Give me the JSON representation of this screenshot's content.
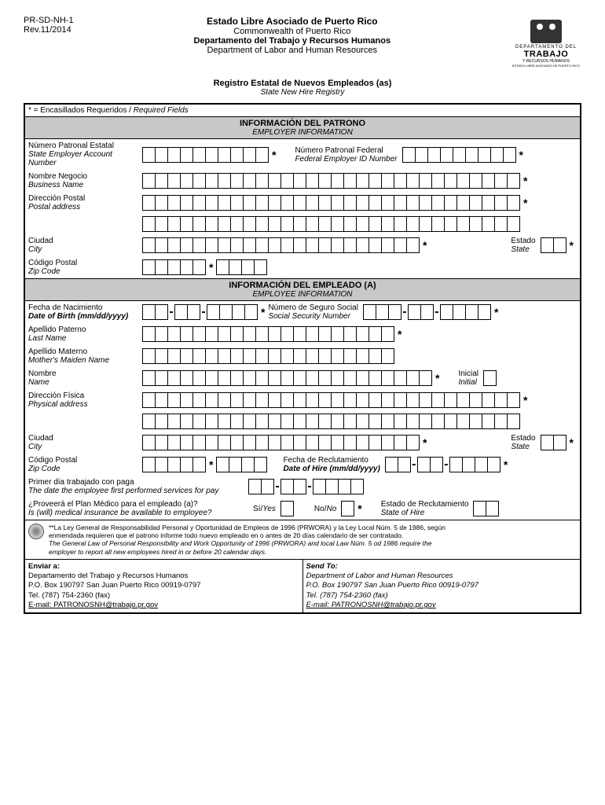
{
  "form_id": "PR-SD-NH-1",
  "revision": "Rev.11/2014",
  "header": {
    "title_es": "Estado Libre Asociado de Puerto Rico",
    "title_en": "Commonwealth of Puerto Rico",
    "dept_es": "Departamento del Trabajo y Recursos Humanos",
    "dept_en": "Department of Labor and Human Resources"
  },
  "logo": {
    "line1": "DEPARTAMENTO DEL",
    "line2": "TRABAJO",
    "line3": "Y RECURSOS HUMANOS",
    "line4": "ESTADO LIBRE ASOCIADO DE PUERTO RICO"
  },
  "subtitle": {
    "es": "Registro Estatal de Nuevos Empleados (as)",
    "en": "State New Hire Registry"
  },
  "required": {
    "prefix": "* = Encasillados Requeridos / ",
    "italic": "Required Fields"
  },
  "sections": {
    "employer": {
      "es": "INFORMACIÓN DEL PATRONO",
      "en": "EMPLOYER INFORMATION"
    },
    "employee": {
      "es": "INFORMACIÓN DEL EMPLEADO (A)",
      "en": "EMPLOYEE INFORMATION"
    }
  },
  "fields": {
    "state_emp_num": {
      "es": "Número Patronal Estatal",
      "en": "State Employer Account Number"
    },
    "fed_emp_num": {
      "es": "Número Patronal Federal",
      "en": "Federal Employer ID Number"
    },
    "business": {
      "es": "Nombre Negocio",
      "en": "Business Name"
    },
    "postal": {
      "es": "Dirección Postal",
      "en": "Postal address"
    },
    "city": {
      "es": "Ciudad",
      "en": "City"
    },
    "state": {
      "es": "Estado",
      "en": "State"
    },
    "zip": {
      "es": "Código Postal",
      "en": "Zip Code"
    },
    "dob": {
      "es": "Fecha de Nacimiento",
      "en": "Date of Birth  (mm/dd/yyyy)"
    },
    "ssn": {
      "es": "Número de Seguro Social",
      "en": "Social Security Number"
    },
    "lastname": {
      "es": "Apellido Paterno",
      "en": "Last Name"
    },
    "maiden": {
      "es": "Apellido Materno",
      "en": "Mother's Maiden Name"
    },
    "firstname": {
      "es": "Nombre",
      "en": "Name"
    },
    "initial": {
      "es": "Inicial",
      "en": "Initial"
    },
    "physical": {
      "es": "Dirección Física",
      "en": "Physical address"
    },
    "hire_date": {
      "es": "Fecha de Reclutamiento",
      "en": "Date of Hire  (mm/dd/yyyy)"
    },
    "first_pay": {
      "es": "Primer día trabajado con paga",
      "en": "The date the employee first performed services for pay"
    },
    "medical": {
      "es": "¿Proveerá el Plan Médico para el empleado (a)?",
      "en": "Is (will) medical insurance be available to employee?"
    },
    "hire_state": {
      "es": "Estado de Reclutamiento",
      "en": "State of Hire"
    },
    "yes": {
      "es": "Sí/",
      "en": "Yes"
    },
    "no": {
      "es": "No/",
      "en": "No"
    }
  },
  "legal": {
    "es1": "**La Ley General de Responsabilidad Personal y Oportunidad de Empleos de 1996 (PRWORA) y la Ley Local Núm. 5 de 1986, según",
    "es2": "enmendada requieren que el patrono informe todo nuevo empleado en o antes de 20 días calendario de ser contratado.",
    "en1": "The General Law of Personal Responsibility and Work Opportunity of 1996 (PRWORA) and local Law Núm. 5 od 1986 require the",
    "en2": "employer to report all new employees hired in or before 20 calendar days."
  },
  "send": {
    "es": {
      "hdr": "Enviar a:",
      "l1": "Departamento del Trabajo y Recursos Humanos",
      "l2": "P.O. Box 190797 San Juan Puerto Rico 00919-0797",
      "l3": "Tel. (787) 754-2360 (fax)",
      "l4": "E-mail: PATRONOSNH@trabajo.pr.gov"
    },
    "en": {
      "hdr": "Send To:",
      "l1": "Department of Labor and Human Resources",
      "l2": "P.O. Box 190797 San Juan Puerto Rico  00919-0797",
      "l3": "Tel. (787) 754-2360 (fax)",
      "l4": "E-mail: PATRONOSNH@trabajo.pr.gov"
    }
  }
}
